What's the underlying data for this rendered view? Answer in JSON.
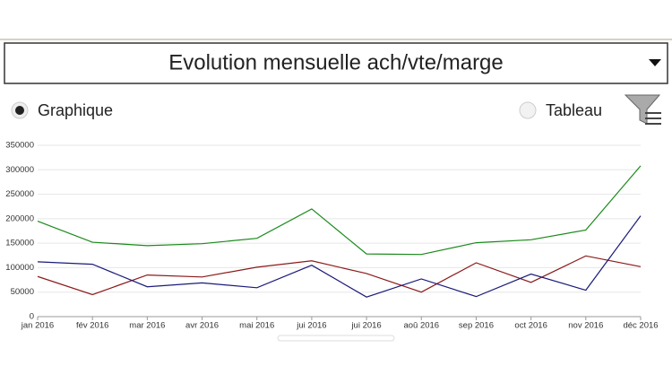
{
  "header": {
    "title": "Evolution mensuelle ach/vte/marge"
  },
  "options": [
    "Graphique",
    "Tableau"
  ],
  "chart_data": {
    "type": "line",
    "categories": [
      "jan 2016",
      "fév 2016",
      "mar 2016",
      "avr 2016",
      "mai 2016",
      "jui 2016",
      "jui 2016",
      "aoû 2016",
      "sep 2016",
      "oct 2016",
      "nov 2016",
      "déc 2016"
    ],
    "series": [
      {
        "color": "#1a8a1a",
        "values": [
          195000,
          152000,
          145000,
          149000,
          160000,
          220000,
          128000,
          127000,
          151000,
          157000,
          177000,
          308000
        ]
      },
      {
        "color": "#8b1a1a",
        "values": [
          82000,
          45000,
          85000,
          81000,
          101000,
          114000,
          88000,
          50000,
          110000,
          70000,
          124000,
          102000
        ]
      },
      {
        "color": "#1a1a7a",
        "values": [
          112000,
          107000,
          61000,
          69000,
          59000,
          105000,
          40000,
          77000,
          41000,
          87000,
          54000,
          206000
        ]
      }
    ],
    "ylim": [
      0,
      350000
    ],
    "yticks": [
      0,
      50000,
      100000,
      150000,
      200000,
      250000,
      300000,
      350000
    ],
    "grid": true
  }
}
